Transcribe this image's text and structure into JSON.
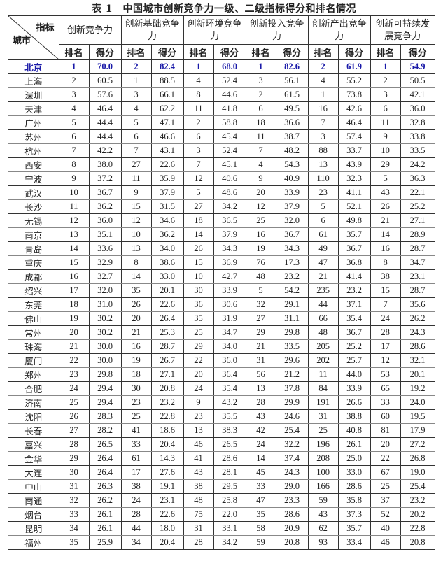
{
  "title": "表 1　中国城市创新竞争力一级、二级指标得分和排名情况",
  "header": {
    "corner_indicator": "指标",
    "corner_city": "城市",
    "groups": [
      "创新竞争力",
      "创新基础竞争力",
      "创新环境竞争力",
      "创新投入竞争力",
      "创新产出竞争力",
      "创新可持续发展竞争力"
    ],
    "rank_label": "排名",
    "score_label": "得分"
  },
  "highlight_color": "#1a1aa8",
  "rows": [
    [
      "北京",
      "1",
      "70.0",
      "2",
      "82.4",
      "1",
      "68.0",
      "1",
      "82.6",
      "2",
      "61.9",
      "1",
      "54.9"
    ],
    [
      "上海",
      "2",
      "60.5",
      "1",
      "88.5",
      "4",
      "52.4",
      "3",
      "56.1",
      "4",
      "55.2",
      "2",
      "50.5"
    ],
    [
      "深圳",
      "3",
      "57.6",
      "3",
      "66.1",
      "8",
      "44.6",
      "2",
      "61.5",
      "1",
      "73.8",
      "3",
      "42.1"
    ],
    [
      "天津",
      "4",
      "46.4",
      "4",
      "62.2",
      "11",
      "41.8",
      "6",
      "49.5",
      "16",
      "42.6",
      "6",
      "36.0"
    ],
    [
      "广州",
      "5",
      "44.4",
      "5",
      "47.1",
      "2",
      "58.8",
      "18",
      "36.6",
      "7",
      "46.4",
      "11",
      "32.8"
    ],
    [
      "苏州",
      "6",
      "44.4",
      "6",
      "46.6",
      "6",
      "45.4",
      "11",
      "38.7",
      "3",
      "57.4",
      "9",
      "33.8"
    ],
    [
      "杭州",
      "7",
      "42.2",
      "7",
      "43.1",
      "3",
      "52.4",
      "7",
      "48.2",
      "88",
      "33.7",
      "10",
      "33.5"
    ],
    [
      "西安",
      "8",
      "38.0",
      "27",
      "22.6",
      "7",
      "45.1",
      "4",
      "54.3",
      "13",
      "43.9",
      "29",
      "24.2"
    ],
    [
      "宁波",
      "9",
      "37.2",
      "11",
      "35.9",
      "12",
      "40.6",
      "9",
      "40.9",
      "110",
      "32.3",
      "5",
      "36.3"
    ],
    [
      "武汉",
      "10",
      "36.7",
      "9",
      "37.9",
      "5",
      "48.6",
      "20",
      "33.9",
      "23",
      "41.1",
      "43",
      "22.1"
    ],
    [
      "长沙",
      "11",
      "36.2",
      "15",
      "31.5",
      "27",
      "34.2",
      "12",
      "37.9",
      "5",
      "52.1",
      "26",
      "25.2"
    ],
    [
      "无锡",
      "12",
      "36.0",
      "12",
      "34.6",
      "18",
      "36.5",
      "25",
      "32.0",
      "6",
      "49.8",
      "21",
      "27.1"
    ],
    [
      "南京",
      "13",
      "35.1",
      "10",
      "36.2",
      "14",
      "37.9",
      "16",
      "36.7",
      "61",
      "35.7",
      "14",
      "28.9"
    ],
    [
      "青岛",
      "14",
      "33.6",
      "13",
      "34.0",
      "26",
      "34.3",
      "19",
      "34.3",
      "49",
      "36.7",
      "16",
      "28.7"
    ],
    [
      "重庆",
      "15",
      "32.9",
      "8",
      "38.6",
      "15",
      "36.9",
      "76",
      "17.3",
      "47",
      "36.8",
      "8",
      "34.7"
    ],
    [
      "成都",
      "16",
      "32.7",
      "14",
      "33.0",
      "10",
      "42.7",
      "48",
      "23.2",
      "21",
      "41.4",
      "38",
      "23.1"
    ],
    [
      "绍兴",
      "17",
      "32.0",
      "35",
      "20.1",
      "30",
      "33.9",
      "5",
      "54.2",
      "235",
      "23.2",
      "15",
      "28.7"
    ],
    [
      "东莞",
      "18",
      "31.0",
      "26",
      "22.6",
      "36",
      "30.6",
      "32",
      "29.1",
      "44",
      "37.1",
      "7",
      "35.6"
    ],
    [
      "佛山",
      "19",
      "30.2",
      "20",
      "26.4",
      "35",
      "31.9",
      "27",
      "31.1",
      "66",
      "35.4",
      "24",
      "26.2"
    ],
    [
      "常州",
      "20",
      "30.2",
      "21",
      "25.3",
      "25",
      "34.7",
      "29",
      "29.8",
      "48",
      "36.7",
      "28",
      "24.3"
    ],
    [
      "珠海",
      "21",
      "30.0",
      "16",
      "28.7",
      "29",
      "34.0",
      "21",
      "33.5",
      "205",
      "25.2",
      "17",
      "28.6"
    ],
    [
      "厦门",
      "22",
      "30.0",
      "19",
      "26.7",
      "22",
      "36.0",
      "31",
      "29.6",
      "202",
      "25.7",
      "12",
      "32.1"
    ],
    [
      "郑州",
      "23",
      "29.8",
      "18",
      "27.1",
      "20",
      "36.4",
      "56",
      "21.2",
      "11",
      "44.0",
      "53",
      "20.1"
    ],
    [
      "合肥",
      "24",
      "29.4",
      "30",
      "20.8",
      "24",
      "35.4",
      "13",
      "37.8",
      "84",
      "33.9",
      "65",
      "19.2"
    ],
    [
      "济南",
      "25",
      "29.4",
      "23",
      "23.2",
      "9",
      "43.2",
      "28",
      "29.9",
      "191",
      "26.6",
      "33",
      "24.0"
    ],
    [
      "沈阳",
      "26",
      "28.3",
      "25",
      "22.8",
      "23",
      "35.5",
      "43",
      "24.6",
      "31",
      "38.8",
      "60",
      "19.5"
    ],
    [
      "长春",
      "27",
      "28.2",
      "41",
      "18.6",
      "13",
      "38.3",
      "42",
      "25.4",
      "25",
      "40.8",
      "81",
      "17.9"
    ],
    [
      "嘉兴",
      "28",
      "26.5",
      "33",
      "20.4",
      "46",
      "26.5",
      "24",
      "32.2",
      "196",
      "26.1",
      "20",
      "27.2"
    ],
    [
      "金华",
      "29",
      "26.4",
      "61",
      "14.3",
      "41",
      "28.6",
      "14",
      "37.4",
      "208",
      "25.0",
      "22",
      "26.8"
    ],
    [
      "大连",
      "30",
      "26.4",
      "17",
      "27.6",
      "43",
      "28.1",
      "45",
      "24.3",
      "100",
      "33.0",
      "67",
      "19.0"
    ],
    [
      "中山",
      "31",
      "26.3",
      "38",
      "19.1",
      "38",
      "29.5",
      "33",
      "29.0",
      "166",
      "28.6",
      "25",
      "25.4"
    ],
    [
      "南通",
      "32",
      "26.2",
      "24",
      "23.1",
      "48",
      "25.8",
      "47",
      "23.3",
      "59",
      "35.8",
      "37",
      "23.2"
    ],
    [
      "烟台",
      "33",
      "26.1",
      "28",
      "22.6",
      "75",
      "22.0",
      "35",
      "28.6",
      "43",
      "37.3",
      "52",
      "20.2"
    ],
    [
      "昆明",
      "34",
      "26.1",
      "44",
      "18.0",
      "31",
      "33.1",
      "58",
      "20.9",
      "62",
      "35.7",
      "40",
      "22.8"
    ],
    [
      "福州",
      "35",
      "25.9",
      "34",
      "20.4",
      "28",
      "34.2",
      "59",
      "20.8",
      "93",
      "33.4",
      "46",
      "20.8"
    ]
  ]
}
